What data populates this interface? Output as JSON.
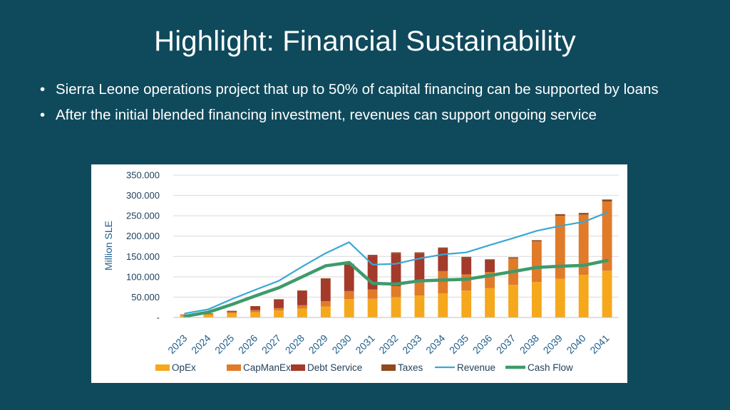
{
  "slide": {
    "title": "Highlight: Financial Sustainability",
    "bullets": [
      "Sierra Leone operations project that up to 50% of capital financing can be supported by loans",
      "After the initial blended financing investment, revenues can support ongoing service"
    ]
  },
  "chart_data": {
    "type": "bar",
    "stacked": true,
    "ylabel": "Million SLE",
    "xlabel": "",
    "ylim": [
      0,
      350000
    ],
    "ytick_values": [
      0,
      50000,
      100000,
      150000,
      200000,
      250000,
      300000,
      350000
    ],
    "ytick_labels": [
      "-",
      "50.000",
      "100.000",
      "150.000",
      "200.000",
      "250.000",
      "300.000",
      "350.000"
    ],
    "grid": true,
    "legend_position": "bottom",
    "categories": [
      "2023",
      "2024",
      "2025",
      "2026",
      "2027",
      "2028",
      "2029",
      "2030",
      "2031",
      "2032",
      "2033",
      "2034",
      "2035",
      "2036",
      "2037",
      "2038",
      "2039",
      "2040",
      "2041"
    ],
    "series": [
      {
        "name": "OpEx",
        "kind": "bar",
        "color": "#f5a81c",
        "values": [
          5000,
          7000,
          10000,
          13000,
          17000,
          22000,
          27000,
          45000,
          46000,
          50000,
          54000,
          59000,
          66000,
          72000,
          80000,
          87000,
          95000,
          105000,
          115000
        ]
      },
      {
        "name": "CapManEx",
        "kind": "bar",
        "color": "#e07b2a",
        "values": [
          2000,
          3000,
          4000,
          5000,
          6000,
          8000,
          13000,
          20000,
          23000,
          27000,
          33000,
          55000,
          40000,
          40000,
          65000,
          100000,
          155000,
          148000,
          170000
        ]
      },
      {
        "name": "Debt Service",
        "kind": "bar",
        "color": "#a33a2a",
        "values": [
          0,
          0,
          2000,
          9000,
          21000,
          35000,
          55000,
          65000,
          82000,
          80000,
          70000,
          55000,
          40000,
          28000,
          0,
          0,
          0,
          0,
          0
        ]
      },
      {
        "name": "Taxes",
        "kind": "bar",
        "color": "#8f4a1e",
        "values": [
          500,
          500,
          500,
          1000,
          1000,
          1500,
          1500,
          2000,
          3000,
          3000,
          3000,
          3000,
          3000,
          3000,
          3000,
          3000,
          4000,
          4000,
          5000
        ]
      },
      {
        "name": "Revenue",
        "kind": "line",
        "color": "#3aa7d6",
        "values": [
          10000,
          20000,
          45000,
          68000,
          90000,
          125000,
          158000,
          185000,
          130000,
          132000,
          145000,
          155000,
          160000,
          178000,
          195000,
          213000,
          225000,
          235000,
          258000
        ]
      },
      {
        "name": "Cash Flow",
        "kind": "line",
        "color": "#3f9a6b",
        "values": [
          3000,
          13000,
          32000,
          53000,
          73000,
          100000,
          127000,
          135000,
          84000,
          82000,
          90000,
          92000,
          94000,
          103000,
          113000,
          123000,
          126000,
          128000,
          140000
        ]
      }
    ]
  }
}
